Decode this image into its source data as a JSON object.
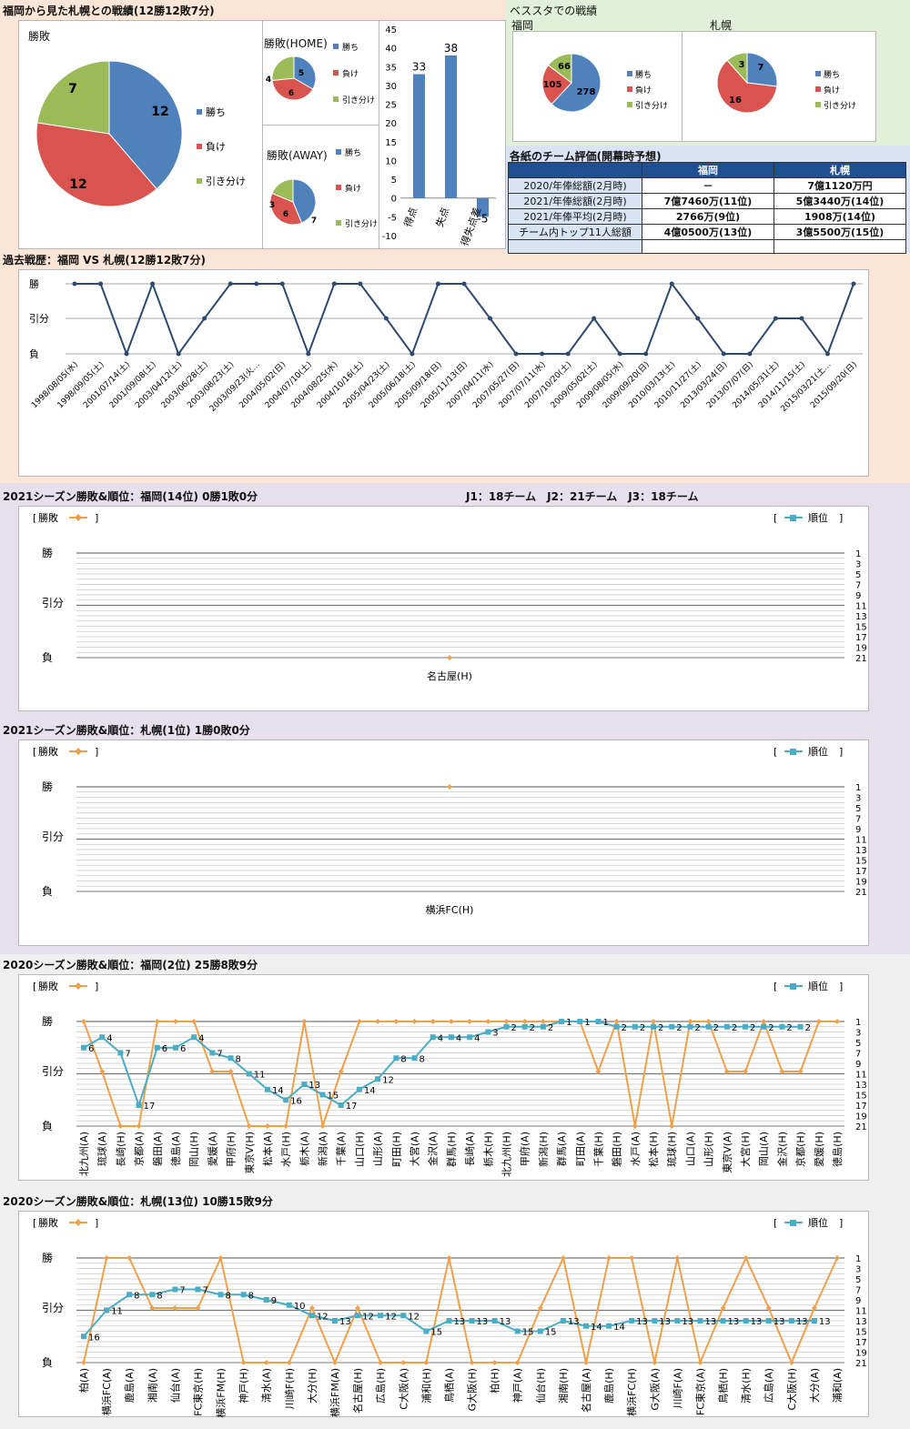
{
  "top": {
    "title": "福岡から見た札幌との戦績(12勝12敗7分)",
    "pie_title": "勝敗",
    "home_title": "勝敗(HOME)",
    "away_title": "勝敗(AWAY)",
    "legend": [
      "勝ち",
      "負け",
      "引き分け"
    ]
  },
  "bessuta": {
    "title": "ベススタでの戦績",
    "left_label": "福岡",
    "right_label": "札幌"
  },
  "eval": {
    "title": "各紙のチーム評価(開幕時予想)",
    "col1": "福岡",
    "col2": "札幌",
    "rows": [
      {
        "label": "2020/年俸総額(2月時)",
        "v1": "－",
        "v2": "7億1120万円"
      },
      {
        "label": "2021/年俸総額(2月時)",
        "v1": "7億7460万(11位)",
        "v2": "5億3440万(14位)"
      },
      {
        "label": "2021/年俸平均(2月時)",
        "v1": "2766万(9位)",
        "v2": "1908万(14位)"
      },
      {
        "label": "チーム内トップ11人総額",
        "v1": "4億0500万(13位)",
        "v2": "3億5500万(15位)"
      }
    ]
  },
  "history": {
    "title": "過去戦歴：福岡 VS 札幌(12勝12敗7分)"
  },
  "s2021f": {
    "title": "2021シーズン勝敗&順位：福岡(14位) 0勝1敗0分",
    "note": "J1：18チーム　J2：21チーム　J3：18チーム"
  },
  "s2021s": {
    "title": "2021シーズン勝敗&順位：札幌(1位) 1勝0敗0分"
  },
  "s2020f": {
    "title": "2020シーズン勝敗&順位：福岡(2位) 25勝8敗9分"
  },
  "s2020s": {
    "title": "2020シーズン勝敗&順位：札幌(13位) 10勝15敗9分"
  },
  "colors": {
    "win": "#4f81bd",
    "loss": "#d9534f",
    "draw": "#9bbb59",
    "line": "#2c4a6e",
    "result": "#f0a04b",
    "rank": "#4bacc6"
  },
  "chart_data": [
    {
      "id": "pie_total",
      "type": "pie",
      "title": "勝敗",
      "labels": [
        "勝ち",
        "負け",
        "引き分け"
      ],
      "values": [
        12,
        12,
        7
      ]
    },
    {
      "id": "pie_home",
      "type": "pie",
      "title": "勝敗(HOME)",
      "labels": [
        "勝ち",
        "負け",
        "引き分け"
      ],
      "values": [
        5,
        6,
        4
      ]
    },
    {
      "id": "pie_away",
      "type": "pie",
      "title": "勝敗(AWAY)",
      "labels": [
        "勝ち",
        "負け",
        "引き分け"
      ],
      "values": [
        7,
        6,
        3
      ]
    },
    {
      "id": "goals",
      "type": "bar",
      "categories": [
        "得点",
        "失点",
        "得失点差"
      ],
      "values": [
        33,
        38,
        -5
      ],
      "ylim": [
        -10,
        45
      ],
      "yticks": [
        -10,
        -5,
        0,
        5,
        10,
        15,
        20,
        25,
        30,
        35,
        40,
        45
      ]
    },
    {
      "id": "pie_bessuta_f",
      "type": "pie",
      "title": "福岡",
      "labels": [
        "勝ち",
        "負け",
        "引き分け"
      ],
      "values": [
        278,
        105,
        66
      ]
    },
    {
      "id": "pie_bessuta_s",
      "type": "pie",
      "title": "札幌",
      "labels": [
        "勝ち",
        "負け",
        "引き分け"
      ],
      "values": [
        7,
        16,
        3
      ]
    },
    {
      "id": "history",
      "type": "line",
      "ylabels": [
        "勝",
        "引分",
        "負"
      ],
      "x": [
        "1998/08/05(水)",
        "1998/09/05(土)",
        "2001/07/14(土)",
        "2001/09/08(土)",
        "2003/04/12(土)",
        "2003/06/28(土)",
        "2003/08/23(土)",
        "2003/09/23(火…",
        "2004/05/02(日)",
        "2004/07/10(土)",
        "2004/08/25(水)",
        "2004/10/16(土)",
        "2005/04/23(土)",
        "2005/06/18(土)",
        "2005/09/18(日)",
        "2005/11/13(日)",
        "2007/04/11(水)",
        "2007/05/27(日)",
        "2007/07/11(水)",
        "2007/10/20(土)",
        "2009/05/02(土)",
        "2009/08/05(水)",
        "2009/09/20(日)",
        "2010/03/13(土)",
        "2010/11/27(土)",
        "2013/03/24(日)",
        "2013/07/07(日)",
        "2014/05/31(土)",
        "2014/11/15(土)",
        "2015/03/21(土…",
        "2015/09/20(日)"
      ],
      "results": [
        "W",
        "W",
        "L",
        "W",
        "L",
        "D",
        "W",
        "W",
        "W",
        "L",
        "W",
        "W",
        "D",
        "L",
        "W",
        "W",
        "D",
        "L",
        "L",
        "L",
        "D",
        "L",
        "L",
        "W",
        "D",
        "L",
        "L",
        "D",
        "D",
        "L",
        "W"
      ]
    },
    {
      "id": "s2021f",
      "type": "line",
      "categories": [
        "名古屋(H)"
      ],
      "results": [
        "L"
      ],
      "ranks": [],
      "rank_ticks": [
        1,
        3,
        5,
        7,
        9,
        11,
        13,
        15,
        17,
        19,
        21
      ],
      "legend": [
        "勝敗",
        "順位"
      ]
    },
    {
      "id": "s2021s",
      "type": "line",
      "categories": [
        "横浜FC(H)"
      ],
      "results": [
        "W"
      ],
      "ranks": [],
      "rank_ticks": [
        1,
        3,
        5,
        7,
        9,
        11,
        13,
        15,
        17,
        19,
        21
      ],
      "legend": [
        "勝敗",
        "順位"
      ]
    },
    {
      "id": "s2020f",
      "type": "line",
      "legend": [
        "勝敗",
        "順位"
      ],
      "rank_ticks": [
        1,
        3,
        5,
        7,
        9,
        11,
        13,
        15,
        17,
        19,
        21
      ],
      "categories": [
        "北九州(A)",
        "琉球(A)",
        "長崎(H)",
        "京都(A)",
        "磐田(A)",
        "徳島(A)",
        "岡山(H)",
        "愛媛(A)",
        "甲府(H)",
        "東京V(H)",
        "松本(A)",
        "水戸(H)",
        "栃木(A)",
        "新潟(A)",
        "千葉(A)",
        "山口(H)",
        "山形(A)",
        "町田(H)",
        "大宮(A)",
        "金沢(A)",
        "群馬(H)",
        "長崎(A)",
        "栃木(H)",
        "北九州(H)",
        "甲府(A)",
        "新潟(H)",
        "群馬(A)",
        "町田(A)",
        "千葉(H)",
        "磐田(H)",
        "水戸(A)",
        "松本(H)",
        "琉球(H)",
        "山口(A)",
        "山形(H)",
        "東京V(A)",
        "大宮(H)",
        "岡山(A)",
        "金沢(H)",
        "京都(H)",
        "愛媛(H)",
        "徳島(H)"
      ],
      "results": [
        "W",
        "D",
        "L",
        "L",
        "W",
        "W",
        "W",
        "D",
        "D",
        "L",
        "L",
        "L",
        "W",
        "L",
        "D",
        "W",
        "W",
        "W",
        "W",
        "W",
        "W",
        "W",
        "W",
        "W",
        "W",
        "W",
        "W",
        "W",
        "D",
        "W",
        "L",
        "W",
        "L",
        "W",
        "W",
        "D",
        "D",
        "W",
        "D",
        "D",
        "W",
        "W"
      ],
      "ranks": [
        6,
        4,
        7,
        17,
        6,
        6,
        4,
        7,
        8,
        11,
        14,
        16,
        13,
        15,
        17,
        14,
        12,
        8,
        8,
        4,
        4,
        4,
        3,
        2,
        2,
        2,
        1,
        1,
        1,
        2,
        2,
        2,
        2,
        2,
        2,
        2,
        2,
        2,
        2,
        2,
        null,
        null
      ]
    },
    {
      "id": "s2020s",
      "type": "line",
      "legend": [
        "勝敗",
        "順位"
      ],
      "rank_ticks": [
        1,
        3,
        5,
        7,
        9,
        11,
        13,
        15,
        17,
        19,
        21
      ],
      "categories": [
        "柏(A)",
        "横浜FC(A)",
        "鹿島(A)",
        "湘南(A)",
        "仙台(A)",
        "FC東京(H)",
        "横浜FM(H)",
        "神戸(H)",
        "清水(A)",
        "川崎F(H)",
        "大分(H)",
        "横浜FM(A)",
        "名古屋(H)",
        "広島(H)",
        "C大阪(A)",
        "浦和(H)",
        "鳥栖(A)",
        "G大阪(H)",
        "柏(H)",
        "神戸(A)",
        "仙台(H)",
        "湘南(H)",
        "名古屋(A)",
        "鹿島(H)",
        "横浜FC(H)",
        "G大阪(A)",
        "川崎F(A)",
        "FC東京(A)",
        "鳥栖(H)",
        "清水(H)",
        "広島(A)",
        "C大阪(H)",
        "大分(A)",
        "浦和(A)"
      ],
      "results": [
        "L",
        "W",
        "W",
        "D",
        "D",
        "D",
        "W",
        "L",
        "L",
        "L",
        "D",
        "L",
        "D",
        "L",
        "L",
        "L",
        "W",
        "L",
        "L",
        "L",
        "D",
        "W",
        "L",
        "W",
        "W",
        "L",
        "W",
        "L",
        "D",
        "W",
        "D",
        "L",
        "D",
        "W"
      ],
      "ranks": [
        16,
        11,
        8,
        8,
        7,
        7,
        8,
        8,
        9,
        10,
        12,
        13,
        12,
        12,
        12,
        15,
        13,
        13,
        13,
        15,
        15,
        13,
        14,
        14,
        13,
        13,
        13,
        13,
        13,
        13,
        13,
        13,
        13,
        null
      ]
    }
  ]
}
